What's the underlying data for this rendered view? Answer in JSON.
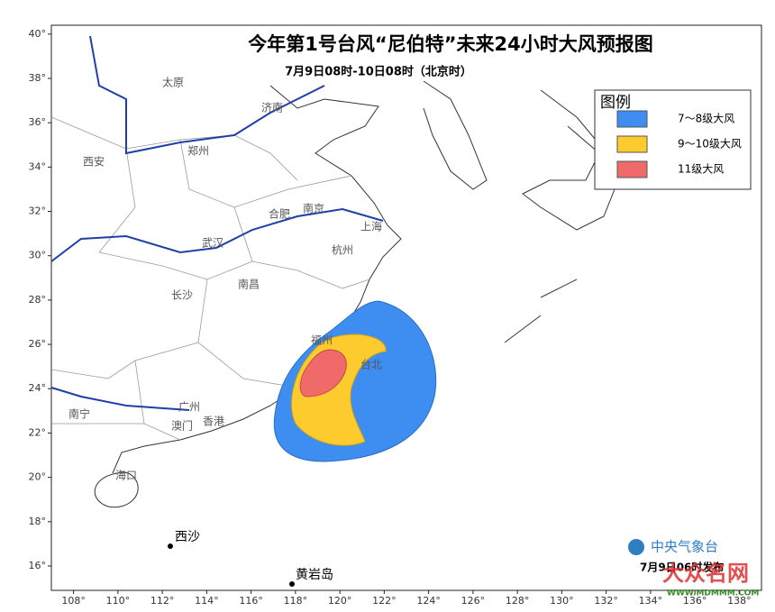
{
  "title": "今年第1号台风“尼伯特”未来24小时大风预报图",
  "subtitle": "7月9日08时-10日08时（北京时）",
  "legend": {
    "title": "图例",
    "items": [
      {
        "label": "7～8级大风",
        "color": "#3d8ef0"
      },
      {
        "label": "9～10级大风",
        "color": "#fdcb2e"
      },
      {
        "label": "11级大风",
        "color": "#f06a6a"
      }
    ]
  },
  "map": {
    "xlim": [
      107,
      139
    ],
    "ylim": [
      14.9,
      40.4
    ],
    "lon_ticks": [
      {
        "value": 108,
        "label": "108°"
      },
      {
        "value": 110,
        "label": "110°"
      },
      {
        "value": 112,
        "label": "112°"
      },
      {
        "value": 114,
        "label": "114°"
      },
      {
        "value": 116,
        "label": "116°"
      },
      {
        "value": 118,
        "label": "118°"
      },
      {
        "value": 120,
        "label": "120°"
      },
      {
        "value": 122,
        "label": "122°"
      },
      {
        "value": 124,
        "label": "124°"
      },
      {
        "value": 126,
        "label": "126°"
      },
      {
        "value": 128,
        "label": "128°"
      },
      {
        "value": 130,
        "label": "130°"
      },
      {
        "value": 132,
        "label": "132°"
      },
      {
        "value": 134,
        "label": "134°"
      },
      {
        "value": 136,
        "label": "136°"
      },
      {
        "value": 138,
        "label": "138°"
      }
    ],
    "lat_ticks": [
      {
        "value": 40,
        "label": "40°"
      },
      {
        "value": 38,
        "label": "38°"
      },
      {
        "value": 36,
        "label": "36°"
      },
      {
        "value": 34,
        "label": "34°"
      },
      {
        "value": 32,
        "label": "32°"
      },
      {
        "value": 30,
        "label": "30°"
      },
      {
        "value": 28,
        "label": "28°"
      },
      {
        "value": 26,
        "label": "26°"
      },
      {
        "value": 24,
        "label": "24°"
      },
      {
        "value": 22,
        "label": "22°"
      },
      {
        "value": 20,
        "label": "20°"
      },
      {
        "value": 18,
        "label": "18°"
      },
      {
        "value": 16,
        "label": "16°"
      }
    ]
  },
  "places": [
    "太原",
    "济南",
    "西安",
    "郑州",
    "合肥",
    "南京",
    "上海",
    "武汉",
    "杭州",
    "长沙",
    "南昌",
    "福州",
    "台北",
    "广州",
    "澳门",
    "香港",
    "南宁",
    "海口",
    "西沙",
    "黄岩岛"
  ],
  "footer": {
    "agency": "中央气象台",
    "issued": "7月9日06时发布",
    "watermark": "大众名网",
    "url": "WWW.MDMMM.COM"
  }
}
